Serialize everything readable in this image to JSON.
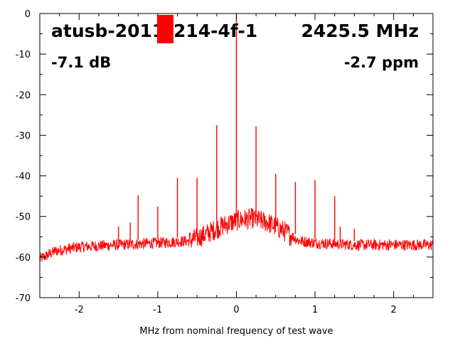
{
  "chart_data": {
    "type": "line",
    "title": "",
    "xlabel": "MHz from nominal frequency of test wave",
    "ylabel": "",
    "xlim": [
      -2.5,
      2.5
    ],
    "ylim": [
      -70,
      0
    ],
    "x_ticks": [
      -2,
      -1,
      0,
      1,
      2
    ],
    "x_tick_labels": [
      "-2",
      "-1",
      "0",
      "1",
      "2"
    ],
    "y_ticks": [
      0,
      -10,
      -20,
      -30,
      -40,
      -50,
      -60,
      -70
    ],
    "y_tick_labels": [
      "0",
      "-10",
      "-20",
      "-30",
      "-40",
      "-50",
      "-60",
      "-70"
    ],
    "grid": false,
    "series_color": "#ff0000",
    "annotations": {
      "device": "atusb-2011",
      "device_suffix": "214-4f-1",
      "frequency": "2425.5 MHz",
      "level": "-7.1 dB",
      "offset": "-2.7 ppm"
    },
    "noise_floor": {
      "x": [
        -2.5,
        -2.3,
        -2.0,
        -1.5,
        -1.0,
        -0.6,
        -0.4,
        -0.2,
        0.0,
        0.2,
        0.4,
        0.6,
        0.8,
        1.0,
        1.5,
        2.0,
        2.5
      ],
      "y": [
        -60.5,
        -58.5,
        -57.5,
        -57.0,
        -56.5,
        -56.0,
        -54.5,
        -52.5,
        -51.0,
        -50.5,
        -51.5,
        -53.5,
        -56.0,
        -56.5,
        -57.0,
        -57.0,
        -57.0
      ]
    },
    "peaks": [
      {
        "x": 0.0,
        "y": 0.0
      },
      {
        "x": -0.25,
        "y": -27.5
      },
      {
        "x": 0.25,
        "y": -27.8
      },
      {
        "x": -0.75,
        "y": -40.5
      },
      {
        "x": -0.5,
        "y": -40.5
      },
      {
        "x": 0.5,
        "y": -39.5
      },
      {
        "x": 0.75,
        "y": -41.5
      },
      {
        "x": -1.25,
        "y": -44.8
      },
      {
        "x": 1.0,
        "y": -41.0
      },
      {
        "x": 1.25,
        "y": -45.0
      },
      {
        "x": -1.0,
        "y": -47.5
      },
      {
        "x": 1.5,
        "y": -53.0
      },
      {
        "x": -1.5,
        "y": -52.5
      },
      {
        "x": -1.35,
        "y": -51.5
      },
      {
        "x": 1.32,
        "y": -52.5
      }
    ]
  }
}
